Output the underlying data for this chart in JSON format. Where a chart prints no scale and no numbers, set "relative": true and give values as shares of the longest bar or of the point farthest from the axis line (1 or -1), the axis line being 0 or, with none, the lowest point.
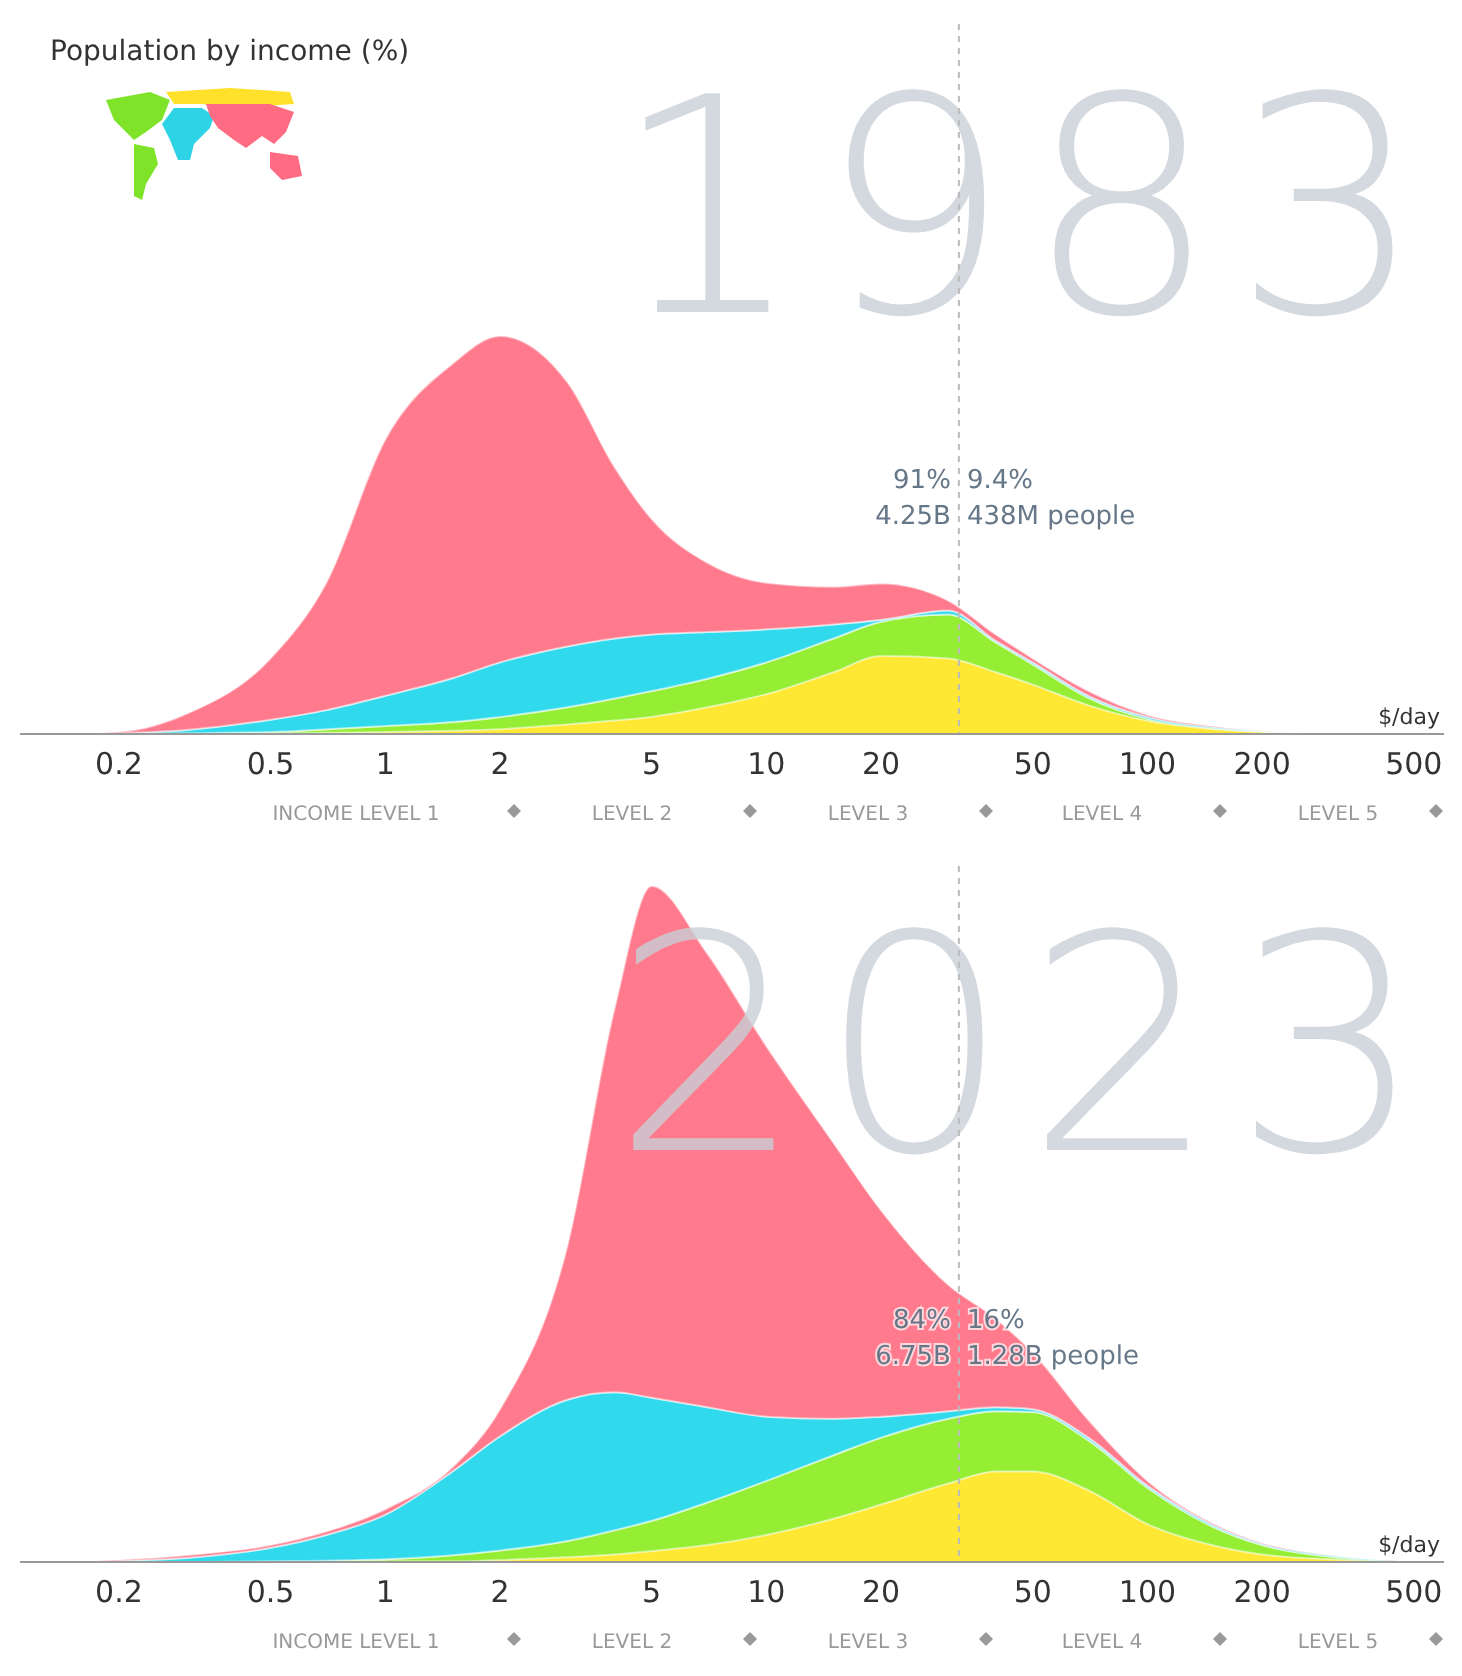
{
  "chart_data": [
    {
      "type": "area",
      "title": "Population by income (%)",
      "subtitle": "1983",
      "xlabel": "$/day",
      "log": "x",
      "stacked": true,
      "relative": true,
      "xlim": [
        0.11,
        600
      ],
      "xticks": [
        0.2,
        0.5,
        1,
        2,
        5,
        10,
        20,
        50,
        100,
        200,
        500
      ],
      "x": [
        0.15,
        0.2,
        0.3,
        0.5,
        0.7,
        1,
        1.5,
        2,
        3,
        4,
        5,
        7,
        10,
        15,
        20,
        30,
        40,
        50,
        70,
        100,
        150,
        200,
        300,
        500
      ],
      "series": [
        {
          "color": "#ffe833",
          "values": [
            0,
            0,
            0,
            0.001,
            0.003,
            0.005,
            0.008,
            0.012,
            0.024,
            0.034,
            0.043,
            0.067,
            0.1,
            0.155,
            0.196,
            0.19,
            0.155,
            0.124,
            0.072,
            0.033,
            0.012,
            0.005,
            0.001,
            0
          ]
        },
        {
          "color": "#95ee34",
          "values": [
            0,
            0,
            0.002,
            0.004,
            0.009,
            0.015,
            0.022,
            0.031,
            0.043,
            0.055,
            0.065,
            0.072,
            0.08,
            0.085,
            0.086,
            0.11,
            0.075,
            0.051,
            0.019,
            0.005,
            0.002,
            0.001,
            0.001,
            0
          ]
        },
        {
          "color": "#31d9ec",
          "values": [
            0,
            0.002,
            0.008,
            0.031,
            0.048,
            0.076,
            0.11,
            0.137,
            0.153,
            0.151,
            0.142,
            0.117,
            0.083,
            0.035,
            0.005,
            0.01,
            0.004,
            0.005,
            0.005,
            0.005,
            0.003,
            0.001,
            0,
            0
          ]
        },
        {
          "color": "#fe7a8c",
          "values": [
            0.001,
            0.003,
            0.04,
            0.154,
            0.32,
            0.644,
            0.79,
            0.82,
            0.665,
            0.43,
            0.29,
            0.174,
            0.117,
            0.095,
            0.091,
            0.025,
            0.016,
            0.01,
            0.012,
            0.005,
            0.002,
            0,
            0,
            0
          ]
        }
      ],
      "ref_lines": [
        {
          "axis": "x",
          "value": 32,
          "line_style": "dashed",
          "color": "#bbbbbb"
        }
      ],
      "annotations": [
        "91%",
        "9.4%",
        "4.25B",
        "438M people",
        "INCOME LEVEL 1",
        "LEVEL 2",
        "LEVEL 3",
        "LEVEL 4",
        "LEVEL 5"
      ]
    },
    {
      "type": "area",
      "subtitle": "2023",
      "xlabel": "$/day",
      "log": "x",
      "stacked": true,
      "relative": true,
      "xlim": [
        0.11,
        600
      ],
      "xticks": [
        0.2,
        0.5,
        1,
        2,
        5,
        10,
        20,
        50,
        100,
        200,
        500
      ],
      "x": [
        0.15,
        0.2,
        0.3,
        0.5,
        0.7,
        1,
        1.5,
        2,
        3,
        4,
        5,
        7,
        10,
        15,
        20,
        30,
        40,
        50,
        70,
        100,
        150,
        200,
        300,
        500
      ],
      "series": [
        {
          "color": "#ffe833",
          "values": [
            0,
            0,
            0,
            0,
            0,
            0.001,
            0.001,
            0.003,
            0.007,
            0.011,
            0.016,
            0.025,
            0.04,
            0.064,
            0.085,
            0.116,
            0.134,
            0.134,
            0.106,
            0.056,
            0.024,
            0.011,
            0.004,
            0
          ]
        },
        {
          "color": "#95ee34",
          "values": [
            0,
            0,
            0,
            0.001,
            0.002,
            0.003,
            0.009,
            0.014,
            0.024,
            0.036,
            0.045,
            0.063,
            0.08,
            0.094,
            0.099,
            0.096,
            0.089,
            0.088,
            0.074,
            0.054,
            0.027,
            0.014,
            0.004,
            0
          ]
        },
        {
          "color": "#31d9ec",
          "values": [
            0,
            0.002,
            0.006,
            0.02,
            0.038,
            0.066,
            0.124,
            0.169,
            0.209,
            0.204,
            0.182,
            0.141,
            0.095,
            0.054,
            0.031,
            0.011,
            0.006,
            0.004,
            0.004,
            0.003,
            0.003,
            0.002,
            0.002,
            0
          ]
        },
        {
          "color": "#fe7a8c",
          "values": [
            0,
            0.001,
            0.004,
            0.004,
            0.005,
            0.008,
            0.006,
            0.04,
            0.226,
            0.569,
            0.757,
            0.671,
            0.548,
            0.408,
            0.305,
            0.187,
            0.131,
            0.084,
            0.026,
            0.007,
            0.002,
            0.001,
            0,
            0
          ]
        }
      ],
      "ref_lines": [
        {
          "axis": "x",
          "value": 32,
          "line_style": "dashed",
          "color": "#bbbbbb"
        }
      ],
      "annotations": [
        "84%",
        "16%",
        "6.75B",
        "1.28B people",
        "INCOME LEVEL 1",
        "LEVEL 2",
        "LEVEL 3",
        "LEVEL 4",
        "LEVEL 5"
      ]
    }
  ]
}
